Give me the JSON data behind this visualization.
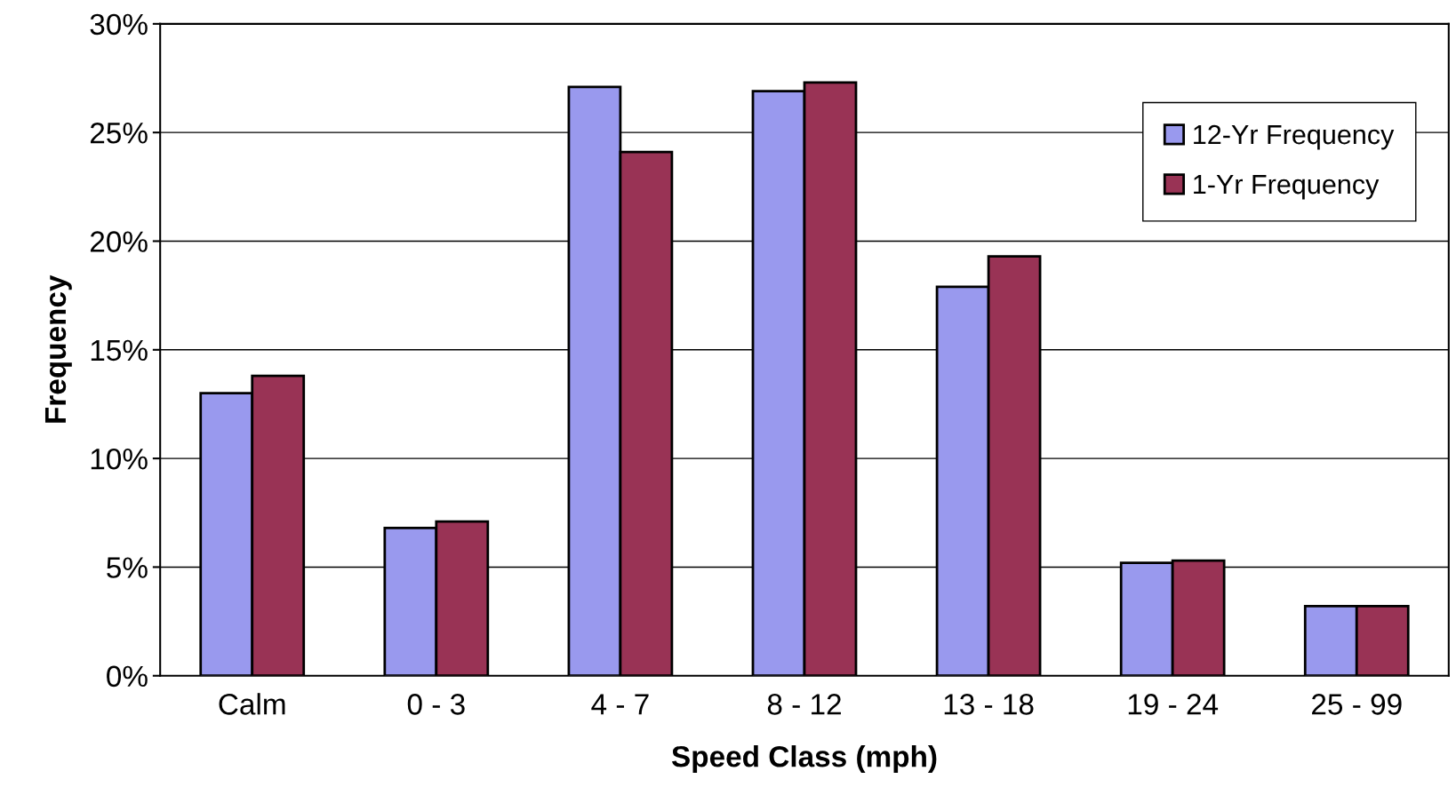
{
  "chart_data": {
    "type": "bar",
    "xlabel": "Speed Class (mph)",
    "ylabel": "Frequency",
    "categories": [
      "Calm",
      "0 - 3",
      "4 - 7",
      "8 - 12",
      "13 - 18",
      "19 - 24",
      "25 - 99"
    ],
    "series": [
      {
        "name": "12-Yr Frequency",
        "color": "#9999ee",
        "values": [
          13.0,
          6.8,
          27.1,
          26.9,
          17.9,
          5.2,
          3.2
        ]
      },
      {
        "name": "1-Yr Frequency",
        "color": "#993355",
        "values": [
          13.8,
          7.1,
          24.1,
          27.3,
          19.3,
          5.3,
          3.2
        ]
      }
    ],
    "ylim": [
      0,
      30
    ],
    "yticks": [
      {
        "value": 0,
        "label": "0%"
      },
      {
        "value": 5,
        "label": "5%"
      },
      {
        "value": 10,
        "label": "10%"
      },
      {
        "value": 15,
        "label": "15%"
      },
      {
        "value": 20,
        "label": "20%"
      },
      {
        "value": 25,
        "label": "25%"
      },
      {
        "value": 30,
        "label": "30%"
      }
    ],
    "grid": "y",
    "legend": "top right"
  }
}
